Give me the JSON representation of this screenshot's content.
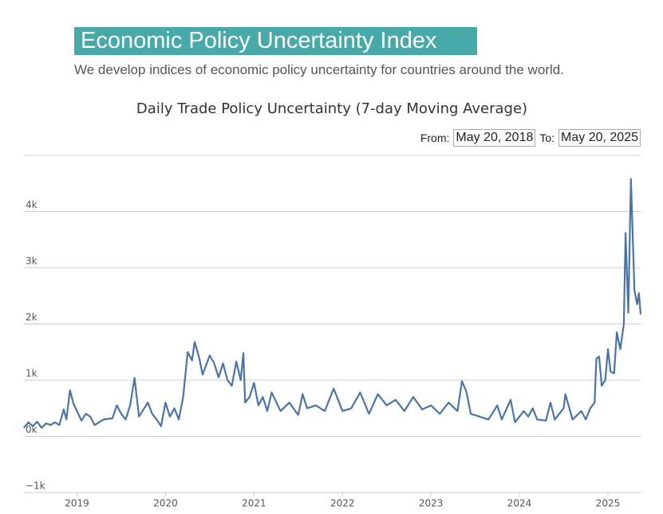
{
  "header": {
    "title": "Economic Policy Uncertainty Index",
    "subtitle": "We develop indices of economic policy uncertainty for countries around the world."
  },
  "range": {
    "from_label": "From:",
    "from": "May 20, 2018",
    "to_label": "To:",
    "to": "May 20, 2025"
  },
  "chart_data": {
    "type": "line",
    "title": "Daily Trade Policy Uncertainty (7-day Moving Average)",
    "x": [
      2018.4,
      2018.45,
      2018.5,
      2018.55,
      2018.6,
      2018.65,
      2018.7,
      2018.75,
      2018.8,
      2018.85,
      2018.88,
      2018.92,
      2018.96,
      2019.0,
      2019.05,
      2019.1,
      2019.15,
      2019.2,
      2019.3,
      2019.4,
      2019.45,
      2019.5,
      2019.55,
      2019.6,
      2019.65,
      2019.7,
      2019.8,
      2019.85,
      2019.9,
      2019.95,
      2020.0,
      2020.05,
      2020.1,
      2020.15,
      2020.2,
      2020.25,
      2020.3,
      2020.33,
      2020.38,
      2020.42,
      2020.5,
      2020.55,
      2020.6,
      2020.65,
      2020.7,
      2020.75,
      2020.8,
      2020.85,
      2020.88,
      2020.9,
      2020.95,
      2021.0,
      2021.05,
      2021.1,
      2021.15,
      2021.2,
      2021.3,
      2021.4,
      2021.5,
      2021.55,
      2021.6,
      2021.7,
      2021.8,
      2021.9,
      2022.0,
      2022.1,
      2022.2,
      2022.3,
      2022.4,
      2022.5,
      2022.6,
      2022.7,
      2022.8,
      2022.9,
      2023.0,
      2023.1,
      2023.2,
      2023.3,
      2023.35,
      2023.4,
      2023.45,
      2023.55,
      2023.65,
      2023.75,
      2023.8,
      2023.9,
      2023.95,
      2024.05,
      2024.1,
      2024.15,
      2024.2,
      2024.3,
      2024.35,
      2024.4,
      2024.5,
      2024.52,
      2024.6,
      2024.7,
      2024.75,
      2024.8,
      2024.85,
      2024.87,
      2024.9,
      2024.93,
      2024.97,
      2025.0,
      2025.03,
      2025.07,
      2025.1,
      2025.14,
      2025.18,
      2025.2,
      2025.23,
      2025.26,
      2025.3,
      2025.33,
      2025.35,
      2025.37
    ],
    "series": [
      {
        "color": "#4a74a8",
        "values": [
          150,
          250,
          180,
          260,
          150,
          230,
          200,
          250,
          200,
          480,
          300,
          820,
          580,
          450,
          280,
          400,
          350,
          200,
          300,
          320,
          550,
          400,
          300,
          550,
          1040,
          350,
          600,
          400,
          300,
          180,
          600,
          350,
          500,
          300,
          700,
          1500,
          1350,
          1680,
          1400,
          1100,
          1440,
          1300,
          1050,
          1300,
          1000,
          900,
          1330,
          1000,
          1480,
          600,
          700,
          950,
          550,
          700,
          450,
          780,
          450,
          600,
          380,
          750,
          500,
          550,
          450,
          850,
          450,
          500,
          780,
          400,
          750,
          550,
          650,
          450,
          700,
          480,
          550,
          400,
          600,
          450,
          980,
          800,
          400,
          350,
          300,
          550,
          300,
          650,
          250,
          450,
          350,
          500,
          300,
          280,
          600,
          300,
          500,
          750,
          300,
          450,
          300,
          500,
          600,
          1380,
          1420,
          900,
          1000,
          1550,
          1150,
          1120,
          1850,
          1550,
          2000,
          3620,
          2200,
          4580,
          2600,
          2350,
          2550,
          2170
        ]
      }
    ],
    "xlim": [
      2018.4,
      2025.37
    ],
    "xticks": [
      {
        "value": 2019,
        "label": "2019"
      },
      {
        "value": 2020,
        "label": "2020"
      },
      {
        "value": 2021,
        "label": "2021"
      },
      {
        "value": 2022,
        "label": "2022"
      },
      {
        "value": 2023,
        "label": "2023"
      },
      {
        "value": 2024,
        "label": "2024"
      },
      {
        "value": 2025,
        "label": "2025"
      }
    ],
    "ylim": [
      -1000,
      5000
    ],
    "yticks": [
      {
        "value": -1000,
        "label": "−1k"
      },
      {
        "value": 0,
        "label": "0k"
      },
      {
        "value": 1000,
        "label": "1k"
      },
      {
        "value": 2000,
        "label": "2k"
      },
      {
        "value": 3000,
        "label": "3k"
      },
      {
        "value": 4000,
        "label": "4k"
      }
    ],
    "grid": true
  }
}
